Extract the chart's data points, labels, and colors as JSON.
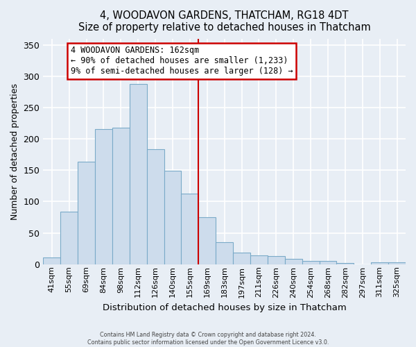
{
  "title": "4, WOODAVON GARDENS, THATCHAM, RG18 4DT",
  "subtitle": "Size of property relative to detached houses in Thatcham",
  "xlabel": "Distribution of detached houses by size in Thatcham",
  "ylabel": "Number of detached properties",
  "bar_labels": [
    "41sqm",
    "55sqm",
    "69sqm",
    "84sqm",
    "98sqm",
    "112sqm",
    "126sqm",
    "140sqm",
    "155sqm",
    "169sqm",
    "183sqm",
    "197sqm",
    "211sqm",
    "226sqm",
    "240sqm",
    "254sqm",
    "268sqm",
    "282sqm",
    "297sqm",
    "311sqm",
    "325sqm"
  ],
  "bar_heights": [
    11,
    84,
    164,
    216,
    218,
    288,
    183,
    149,
    113,
    75,
    35,
    19,
    14,
    13,
    9,
    5,
    5,
    2,
    0,
    3,
    3
  ],
  "bar_color": "#cddcec",
  "bar_edge_color": "#7aaac8",
  "vline_color": "#cc0000",
  "annotation_title": "4 WOODAVON GARDENS: 162sqm",
  "annotation_line1": "← 90% of detached houses are smaller (1,233)",
  "annotation_line2": "9% of semi-detached houses are larger (128) →",
  "annotation_box_facecolor": "#ffffff",
  "annotation_box_edgecolor": "#cc0000",
  "ylim": [
    0,
    360
  ],
  "yticks": [
    0,
    50,
    100,
    150,
    200,
    250,
    300,
    350
  ],
  "footer1": "Contains HM Land Registry data © Crown copyright and database right 2024.",
  "footer2": "Contains public sector information licensed under the Open Government Licence v3.0.",
  "background_color": "#e8eef5",
  "grid_color": "#ffffff"
}
